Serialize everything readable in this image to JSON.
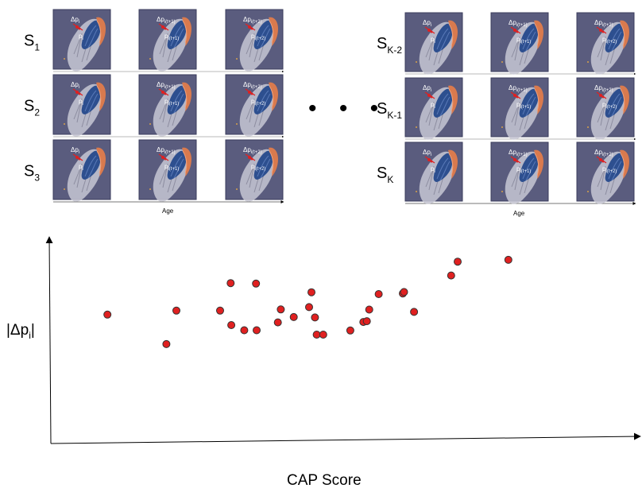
{
  "panels": [
    {
      "id": "left",
      "subjects": [
        {
          "base": "S",
          "sub": "1"
        },
        {
          "base": "S",
          "sub": "2"
        },
        {
          "base": "S",
          "sub": "3"
        }
      ],
      "age_label": "Age"
    },
    {
      "id": "right",
      "subjects": [
        {
          "base": "S",
          "sub": "K-2"
        },
        {
          "base": "S",
          "sub": "K-1"
        },
        {
          "base": "S",
          "sub": "K"
        }
      ],
      "age_label": "Age"
    }
  ],
  "thumb_labels": [
    {
      "delta": "Δp",
      "delta_sub": "i",
      "point": "p",
      "point_sub": "i"
    },
    {
      "delta": "Δp",
      "delta_sub": "i(t+1)",
      "point": "p",
      "point_sub": "i(t+1)"
    },
    {
      "delta": "Δp",
      "delta_sub": "i(t+2)",
      "point": "p",
      "point_sub": "i(t+2)"
    }
  ],
  "ellipsis": "• • •",
  "colors": {
    "thumb_bg": "#5a5c7e",
    "thumb_border": "#3b3d5c",
    "dot_fill": "#e02020",
    "dot_stroke": "#333333",
    "brain_dark": "#2d4f8f",
    "brain_orange": "#d97a4e",
    "brain_grey": "#b9b9c8"
  },
  "chart_data": {
    "type": "scatter",
    "xlabel": "CAP Score",
    "ylabel": "|Δp_i|",
    "ylabel_parts": {
      "base": "|Δp",
      "sub": "i",
      "end": "|"
    },
    "x_ticks": [],
    "y_ticks": [],
    "grid": false,
    "points": [
      {
        "x": 0.096,
        "y": 0.624
      },
      {
        "x": 0.196,
        "y": 0.481
      },
      {
        "x": 0.213,
        "y": 0.643
      },
      {
        "x": 0.287,
        "y": 0.643
      },
      {
        "x": 0.305,
        "y": 0.776
      },
      {
        "x": 0.306,
        "y": 0.573
      },
      {
        "x": 0.328,
        "y": 0.548
      },
      {
        "x": 0.348,
        "y": 0.774
      },
      {
        "x": 0.349,
        "y": 0.548
      },
      {
        "x": 0.385,
        "y": 0.586
      },
      {
        "x": 0.39,
        "y": 0.649
      },
      {
        "x": 0.412,
        "y": 0.612
      },
      {
        "x": 0.438,
        "y": 0.66
      },
      {
        "x": 0.442,
        "y": 0.732
      },
      {
        "x": 0.448,
        "y": 0.61
      },
      {
        "x": 0.451,
        "y": 0.527
      },
      {
        "x": 0.462,
        "y": 0.527
      },
      {
        "x": 0.508,
        "y": 0.547
      },
      {
        "x": 0.53,
        "y": 0.588
      },
      {
        "x": 0.536,
        "y": 0.592
      },
      {
        "x": 0.54,
        "y": 0.648
      },
      {
        "x": 0.556,
        "y": 0.723
      },
      {
        "x": 0.597,
        "y": 0.726
      },
      {
        "x": 0.599,
        "y": 0.733
      },
      {
        "x": 0.616,
        "y": 0.637
      },
      {
        "x": 0.679,
        "y": 0.813
      },
      {
        "x": 0.69,
        "y": 0.88
      },
      {
        "x": 0.776,
        "y": 0.889
      }
    ]
  }
}
